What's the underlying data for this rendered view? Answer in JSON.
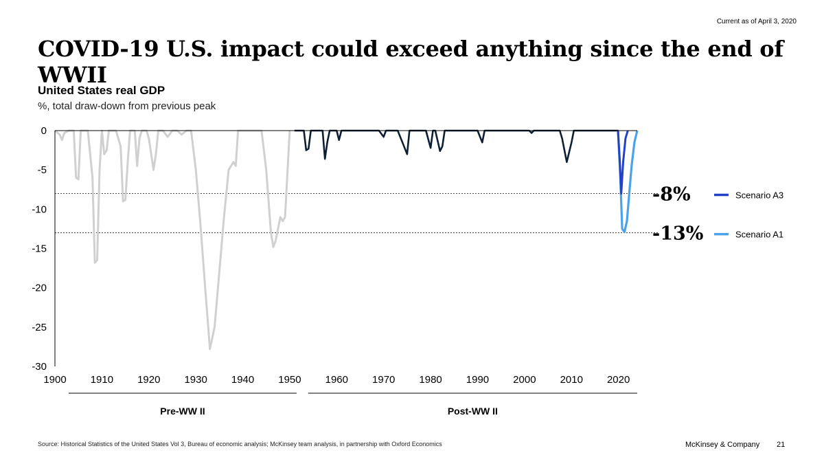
{
  "header": {
    "current_as_of": "Current as of April 3, 2020",
    "headline": "COVID-19 U.S. impact could exceed anything since the end of WWII"
  },
  "footer": {
    "source": "Source: Historical Statistics of the United States Vol 3, Bureau of economic analysis; McKinsey team analysis, in partnership with Oxford Economics",
    "brand": "McKinsey & Company",
    "page_number": "21"
  },
  "chart_data": {
    "type": "area",
    "title": "United States real GDP",
    "subtitle": "%, total draw-down from previous peak",
    "xlim": [
      1900,
      2024
    ],
    "ylim": [
      -30,
      0
    ],
    "x_ticks": [
      1900,
      1910,
      1920,
      1930,
      1940,
      1950,
      1960,
      1970,
      1980,
      1990,
      2000,
      2010,
      2020
    ],
    "y_ticks": [
      0,
      -5,
      -10,
      -15,
      -20,
      -25,
      -30
    ],
    "reference_lines": [
      {
        "y": -8,
        "label": "-8%"
      },
      {
        "y": -13,
        "label": "-13%"
      }
    ],
    "groups": [
      {
        "label": "Pre-WW II",
        "range": [
          1900,
          1950
        ]
      },
      {
        "label": "Post-WW II",
        "range": [
          1951,
          2024
        ]
      }
    ],
    "series": [
      {
        "id": "pre-ww2",
        "color": "#d0d0d0",
        "points": [
          [
            1900,
            0
          ],
          [
            1901,
            -0.5
          ],
          [
            1901.5,
            -1.2
          ],
          [
            1902,
            -0.3
          ],
          [
            1903,
            0
          ],
          [
            1904,
            0
          ],
          [
            1904.5,
            -6
          ],
          [
            1905,
            -6.2
          ],
          [
            1905.5,
            0
          ],
          [
            1907,
            0
          ],
          [
            1908,
            -6
          ],
          [
            1908.5,
            -16.8
          ],
          [
            1909,
            -16.5
          ],
          [
            1909.5,
            -5
          ],
          [
            1910,
            0
          ],
          [
            1910.5,
            -3
          ],
          [
            1911,
            -2.5
          ],
          [
            1911.5,
            0
          ],
          [
            1913,
            0
          ],
          [
            1914,
            -2
          ],
          [
            1914.5,
            -9
          ],
          [
            1915,
            -8.8
          ],
          [
            1915.5,
            -4
          ],
          [
            1916,
            0
          ],
          [
            1917,
            0
          ],
          [
            1917.5,
            -4.5
          ],
          [
            1918,
            -1
          ],
          [
            1918.5,
            0
          ],
          [
            1919,
            0
          ],
          [
            1919.5,
            0
          ],
          [
            1920,
            -1
          ],
          [
            1920.5,
            -3
          ],
          [
            1921,
            -5
          ],
          [
            1921.5,
            -3
          ],
          [
            1922,
            0
          ],
          [
            1923,
            0
          ],
          [
            1924,
            -0.8
          ],
          [
            1925,
            0
          ],
          [
            1926,
            0
          ],
          [
            1927,
            -0.5
          ],
          [
            1928,
            0
          ],
          [
            1929,
            0
          ],
          [
            1930,
            -5
          ],
          [
            1931,
            -12
          ],
          [
            1932,
            -20
          ],
          [
            1933,
            -27.8
          ],
          [
            1934,
            -25
          ],
          [
            1935,
            -18
          ],
          [
            1936,
            -11
          ],
          [
            1937,
            -5
          ],
          [
            1938,
            -4
          ],
          [
            1938.5,
            -4.5
          ],
          [
            1939,
            0
          ],
          [
            1944,
            0
          ],
          [
            1945,
            -5
          ],
          [
            1946,
            -13
          ],
          [
            1946.5,
            -14.8
          ],
          [
            1947,
            -14
          ],
          [
            1948,
            -11
          ],
          [
            1948.5,
            -11.5
          ],
          [
            1949,
            -11
          ],
          [
            1950,
            0
          ]
        ]
      },
      {
        "id": "post-ww2",
        "color": "#0e1f33",
        "points": [
          [
            1951,
            0
          ],
          [
            1953,
            0
          ],
          [
            1953.5,
            -2.5
          ],
          [
            1954,
            -2.3
          ],
          [
            1954.5,
            0
          ],
          [
            1957,
            0
          ],
          [
            1957.5,
            -3.6
          ],
          [
            1958,
            -1.5
          ],
          [
            1958.5,
            0
          ],
          [
            1960,
            0
          ],
          [
            1960.5,
            -1.2
          ],
          [
            1961,
            0
          ],
          [
            1969,
            0
          ],
          [
            1970,
            -0.8
          ],
          [
            1970.5,
            0
          ],
          [
            1973,
            0
          ],
          [
            1974,
            -1.5
          ],
          [
            1975,
            -3
          ],
          [
            1975.5,
            0
          ],
          [
            1979,
            0
          ],
          [
            1980,
            -2.2
          ],
          [
            1980.5,
            0
          ],
          [
            1981,
            0
          ],
          [
            1982,
            -2.6
          ],
          [
            1982.5,
            -2
          ],
          [
            1983,
            0
          ],
          [
            1990,
            0
          ],
          [
            1991,
            -1.5
          ],
          [
            1991.5,
            0
          ],
          [
            2001,
            0
          ],
          [
            2001.5,
            -0.3
          ],
          [
            2002,
            0
          ],
          [
            2007.5,
            0
          ],
          [
            2008,
            -1
          ],
          [
            2009,
            -4
          ],
          [
            2010,
            -1.5
          ],
          [
            2010.5,
            0
          ],
          [
            2020,
            0
          ]
        ]
      },
      {
        "id": "a1",
        "name": "Scenario A1",
        "color": "#4aa3e8",
        "points": [
          [
            2019.9,
            0
          ],
          [
            2020.4,
            -6
          ],
          [
            2020.8,
            -12.5
          ],
          [
            2021.3,
            -12.9
          ],
          [
            2021.8,
            -11.5
          ],
          [
            2022.3,
            -8
          ],
          [
            2022.8,
            -4.5
          ],
          [
            2023.4,
            -1.5
          ],
          [
            2024,
            0
          ]
        ]
      },
      {
        "id": "a3",
        "name": "Scenario A3",
        "color": "#2340c8",
        "points": [
          [
            2019.9,
            0
          ],
          [
            2020.3,
            -4
          ],
          [
            2020.6,
            -8
          ],
          [
            2021.0,
            -4
          ],
          [
            2021.5,
            -1
          ],
          [
            2022,
            0
          ]
        ]
      }
    ]
  }
}
